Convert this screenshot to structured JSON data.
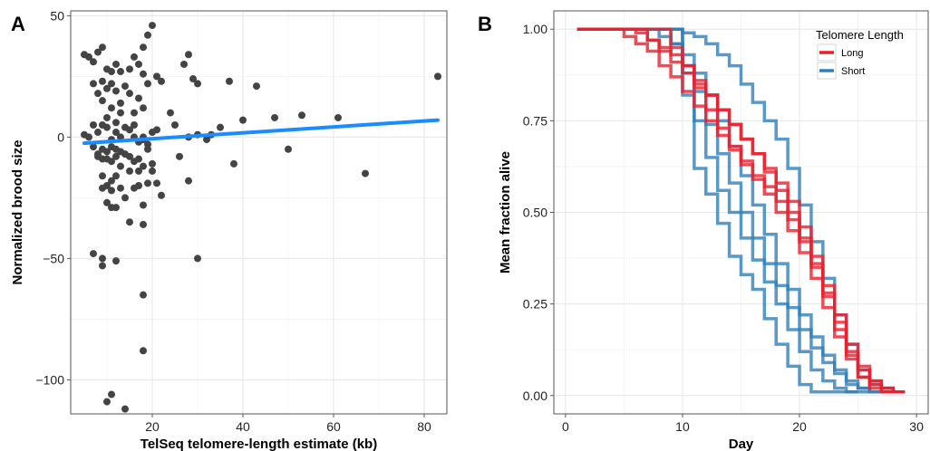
{
  "chart_data": [
    {
      "panel": "A",
      "type": "scatter",
      "xlabel": "TelSeq telomere-length estimate (kb)",
      "ylabel": "Normalized brood size",
      "xlim": [
        2,
        85
      ],
      "ylim": [
        -114,
        52
      ],
      "xticks": [
        20,
        40,
        60,
        80
      ],
      "yticks": [
        50,
        0,
        -50,
        -100
      ],
      "ytick_labels": [
        "50",
        "0",
        "−50",
        "−100"
      ],
      "grid": true,
      "point_color": "#444444",
      "line_color": "#1a8cff",
      "trend": {
        "x": [
          5,
          83
        ],
        "y": [
          -2.5,
          7
        ]
      },
      "points": [
        [
          5,
          34
        ],
        [
          6,
          33
        ],
        [
          7,
          31
        ],
        [
          8,
          35
        ],
        [
          9,
          37
        ],
        [
          10,
          28
        ],
        [
          11,
          27
        ],
        [
          12,
          30
        ],
        [
          13,
          27
        ],
        [
          15,
          28
        ],
        [
          16,
          33
        ],
        [
          17,
          30
        ],
        [
          18,
          37
        ],
        [
          19,
          42
        ],
        [
          20,
          46
        ],
        [
          21,
          25
        ],
        [
          22,
          23
        ],
        [
          28,
          34
        ],
        [
          27,
          30
        ],
        [
          29,
          24
        ],
        [
          7,
          22
        ],
        [
          8,
          18
        ],
        [
          9,
          15
        ],
        [
          9,
          23
        ],
        [
          10,
          20
        ],
        [
          11,
          12
        ],
        [
          11,
          22
        ],
        [
          12,
          19
        ],
        [
          13,
          14
        ],
        [
          14,
          21
        ],
        [
          15,
          18
        ],
        [
          16,
          10
        ],
        [
          17,
          16
        ],
        [
          18,
          12
        ],
        [
          19,
          22
        ],
        [
          18,
          26
        ],
        [
          5,
          1
        ],
        [
          6,
          0
        ],
        [
          7,
          5
        ],
        [
          8,
          2
        ],
        [
          9,
          5
        ],
        [
          10,
          8
        ],
        [
          10,
          4
        ],
        [
          11,
          -1
        ],
        [
          12,
          6
        ],
        [
          12,
          2
        ],
        [
          13,
          0
        ],
        [
          13,
          10
        ],
        [
          14,
          4
        ],
        [
          15,
          3
        ],
        [
          16,
          5
        ],
        [
          16,
          0
        ],
        [
          17,
          -2
        ],
        [
          18,
          -1
        ],
        [
          18,
          0
        ],
        [
          19,
          -3
        ],
        [
          20,
          2
        ],
        [
          21,
          3
        ],
        [
          7,
          -4
        ],
        [
          8,
          -7
        ],
        [
          8,
          -8
        ],
        [
          9,
          -5
        ],
        [
          9,
          -9
        ],
        [
          10,
          -6
        ],
        [
          10,
          -9
        ],
        [
          11,
          -4
        ],
        [
          11,
          -10
        ],
        [
          12,
          -8
        ],
        [
          12,
          -5
        ],
        [
          13,
          -6
        ],
        [
          13,
          -12
        ],
        [
          14,
          -7
        ],
        [
          15,
          -8
        ],
        [
          15,
          -14
        ],
        [
          16,
          -10
        ],
        [
          17,
          -9
        ],
        [
          17,
          -14
        ],
        [
          18,
          -12
        ],
        [
          19,
          -5
        ],
        [
          20,
          -11
        ],
        [
          20,
          -14
        ],
        [
          9,
          -16
        ],
        [
          9,
          -21
        ],
        [
          10,
          -20
        ],
        [
          11,
          -18
        ],
        [
          11,
          -22
        ],
        [
          12,
          -16
        ],
        [
          13,
          -21
        ],
        [
          14,
          -25
        ],
        [
          16,
          -21
        ],
        [
          17,
          -20
        ],
        [
          18,
          -28
        ],
        [
          19,
          -19
        ],
        [
          21,
          -19
        ],
        [
          22,
          -24
        ],
        [
          12,
          -29
        ],
        [
          11,
          -29
        ],
        [
          10,
          -27
        ],
        [
          15,
          -35
        ],
        [
          18,
          -36
        ],
        [
          7,
          -48
        ],
        [
          9,
          -50
        ],
        [
          9,
          -53
        ],
        [
          12,
          -51
        ],
        [
          30,
          -50
        ],
        [
          18,
          -65
        ],
        [
          18,
          -88
        ],
        [
          11,
          -106
        ],
        [
          10,
          -109
        ],
        [
          14,
          -112
        ],
        [
          28,
          0
        ],
        [
          30,
          1
        ],
        [
          33,
          1
        ],
        [
          32,
          -1
        ],
        [
          35,
          4
        ],
        [
          38,
          -11
        ],
        [
          40,
          7
        ],
        [
          37,
          23
        ],
        [
          43,
          21
        ],
        [
          47,
          8
        ],
        [
          50,
          -5
        ],
        [
          53,
          9
        ],
        [
          61,
          8
        ],
        [
          67,
          -15
        ],
        [
          83,
          25
        ],
        [
          26,
          -8
        ],
        [
          28,
          -18
        ],
        [
          30,
          22
        ],
        [
          24,
          10
        ],
        [
          25,
          5
        ]
      ]
    },
    {
      "panel": "B",
      "type": "line",
      "xlabel": "Day",
      "ylabel": "Mean fraction alive",
      "xlim": [
        -1,
        31
      ],
      "ylim": [
        -0.05,
        1.05
      ],
      "xticks": [
        0,
        10,
        20,
        30
      ],
      "yticks": [
        0,
        0.25,
        0.5,
        0.75,
        1
      ],
      "ytick_labels": [
        "0.00",
        "0.25",
        "0.50",
        "0.75",
        "1.00"
      ],
      "grid": true,
      "legend_position": "top-right",
      "legend": {
        "title": "Telomere Length",
        "entries": [
          {
            "label": "Long",
            "color": "#e8202e"
          },
          {
            "label": "Short",
            "color": "#2f7fba"
          }
        ]
      },
      "series": [
        {
          "group": "Short",
          "color": "#2f7fba",
          "x": [
            1,
            9,
            10,
            11,
            12,
            13,
            14,
            15,
            16,
            17,
            18,
            19,
            20,
            21,
            22,
            23,
            24,
            25,
            26,
            27,
            28,
            29
          ],
          "y": [
            1.0,
            1.0,
            0.99,
            0.98,
            0.96,
            0.93,
            0.9,
            0.85,
            0.8,
            0.75,
            0.7,
            0.62,
            0.52,
            0.42,
            0.32,
            0.22,
            0.14,
            0.07,
            0.03,
            0.02,
            0.01,
            0.01
          ]
        },
        {
          "group": "Short",
          "color": "#2f7fba",
          "x": [
            1,
            7,
            8,
            9,
            10,
            11,
            12,
            13,
            14,
            15,
            16,
            17,
            18,
            19,
            20,
            21,
            22,
            23,
            24,
            25,
            26,
            27,
            28
          ],
          "y": [
            1.0,
            1.0,
            0.98,
            0.96,
            0.93,
            0.88,
            0.82,
            0.75,
            0.68,
            0.6,
            0.52,
            0.44,
            0.36,
            0.29,
            0.22,
            0.16,
            0.11,
            0.07,
            0.04,
            0.02,
            0.01,
            0.01,
            0.01
          ]
        },
        {
          "group": "Short",
          "color": "#2f7fba",
          "x": [
            1,
            8,
            9,
            10,
            11,
            12,
            13,
            14,
            15,
            16,
            17,
            18,
            19,
            20,
            21,
            22,
            23,
            24,
            25,
            26,
            27
          ],
          "y": [
            1.0,
            1.0,
            0.96,
            0.9,
            0.83,
            0.74,
            0.66,
            0.58,
            0.5,
            0.43,
            0.36,
            0.3,
            0.24,
            0.18,
            0.13,
            0.09,
            0.06,
            0.03,
            0.02,
            0.01,
            0.01
          ]
        },
        {
          "group": "Short",
          "color": "#2f7fba",
          "x": [
            1,
            9,
            10,
            11,
            12,
            13,
            14,
            15,
            16,
            17,
            18,
            19,
            20,
            21,
            22,
            23,
            24,
            25,
            26
          ],
          "y": [
            1.0,
            1.0,
            0.88,
            0.75,
            0.65,
            0.56,
            0.5,
            0.43,
            0.37,
            0.31,
            0.25,
            0.18,
            0.12,
            0.07,
            0.04,
            0.02,
            0.01,
            0.01,
            0.01
          ]
        },
        {
          "group": "Short",
          "color": "#2f7fba",
          "x": [
            1,
            9,
            10,
            11,
            12,
            13,
            14,
            15,
            16,
            17,
            18,
            19,
            20,
            21,
            22,
            23,
            24,
            25
          ],
          "y": [
            1.0,
            1.0,
            0.82,
            0.62,
            0.55,
            0.47,
            0.38,
            0.33,
            0.29,
            0.21,
            0.14,
            0.08,
            0.03,
            0.01,
            0.01,
            0.01,
            0.01,
            0.01
          ]
        },
        {
          "group": "Long",
          "color": "#e8202e",
          "x": [
            1,
            5,
            6,
            7,
            8,
            9,
            10,
            11,
            12,
            13,
            14,
            15,
            16,
            17,
            18,
            19,
            20,
            21,
            22,
            23,
            24,
            25,
            26,
            27,
            28,
            29
          ],
          "y": [
            1.0,
            1.0,
            0.99,
            0.97,
            0.95,
            0.93,
            0.9,
            0.86,
            0.82,
            0.78,
            0.74,
            0.7,
            0.66,
            0.61,
            0.56,
            0.5,
            0.43,
            0.36,
            0.28,
            0.2,
            0.12,
            0.07,
            0.04,
            0.02,
            0.01,
            0.01
          ]
        },
        {
          "group": "Long",
          "color": "#e8202e",
          "x": [
            1,
            4,
            5,
            6,
            7,
            8,
            9,
            10,
            11,
            12,
            13,
            14,
            15,
            16,
            17,
            18,
            19,
            20,
            21,
            22,
            23,
            24,
            25,
            26,
            27,
            28
          ],
          "y": [
            1.0,
            1.0,
            0.98,
            0.96,
            0.94,
            0.9,
            0.87,
            0.83,
            0.79,
            0.75,
            0.71,
            0.67,
            0.63,
            0.59,
            0.55,
            0.5,
            0.45,
            0.39,
            0.32,
            0.24,
            0.16,
            0.1,
            0.05,
            0.03,
            0.01,
            0.01
          ]
        },
        {
          "group": "Long",
          "color": "#e8202e",
          "x": [
            1,
            6,
            7,
            8,
            9,
            10,
            11,
            12,
            13,
            14,
            15,
            16,
            17,
            18,
            19,
            20,
            21,
            22,
            23,
            24,
            25,
            26,
            27,
            28,
            29
          ],
          "y": [
            1.0,
            1.0,
            0.97,
            0.94,
            0.91,
            0.88,
            0.85,
            0.82,
            0.78,
            0.74,
            0.7,
            0.66,
            0.62,
            0.58,
            0.53,
            0.46,
            0.38,
            0.3,
            0.22,
            0.14,
            0.08,
            0.04,
            0.02,
            0.01,
            0.01
          ]
        },
        {
          "group": "Long",
          "color": "#e8202e",
          "x": [
            1,
            8,
            9,
            10,
            11,
            12,
            13,
            14,
            15,
            16,
            17,
            18,
            19,
            20,
            21,
            22,
            23,
            24,
            25,
            26,
            27,
            28,
            29
          ],
          "y": [
            1.0,
            1.0,
            0.95,
            0.9,
            0.84,
            0.78,
            0.73,
            0.68,
            0.64,
            0.6,
            0.57,
            0.53,
            0.48,
            0.42,
            0.35,
            0.27,
            0.18,
            0.11,
            0.05,
            0.02,
            0.01,
            0.01,
            0.01
          ]
        }
      ]
    }
  ]
}
